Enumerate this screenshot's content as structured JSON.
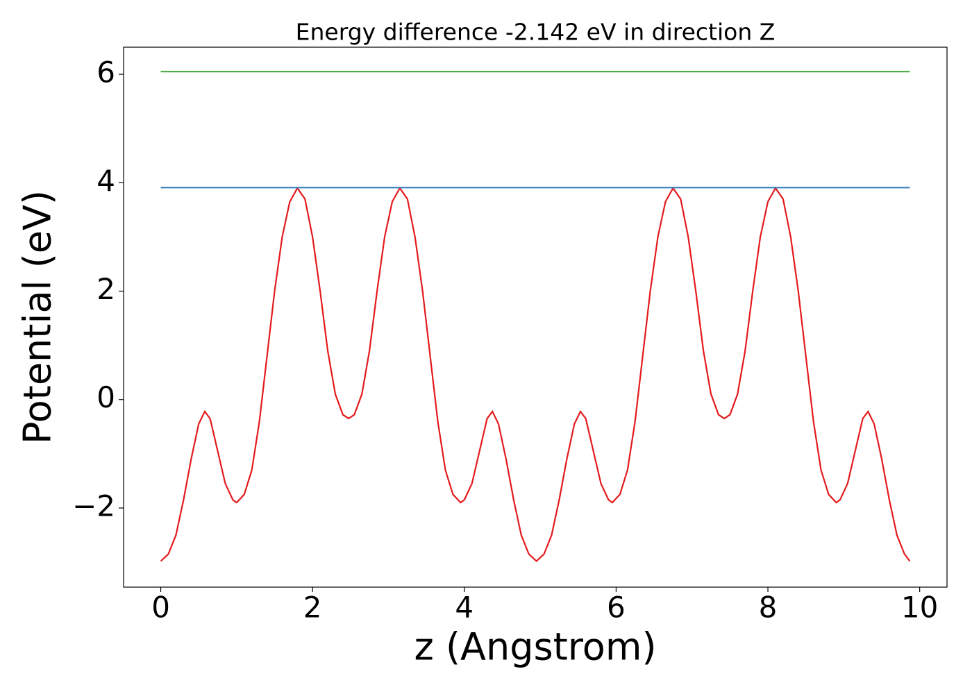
{
  "chart_data": {
    "type": "line",
    "title": "Energy difference -2.142 eV in direction Z",
    "xlabel": "z (Angstrom)",
    "ylabel": "Potential (eV)",
    "xlim": [
      -0.49,
      10.36
    ],
    "ylim": [
      -3.46,
      6.5
    ],
    "xticks": [
      0,
      2,
      4,
      6,
      8,
      10
    ],
    "yticks": [
      {
        "value": -2,
        "label": "−2"
      },
      0,
      2,
      4,
      6
    ],
    "grid": false,
    "series": [
      {
        "color": "#e41a1c",
        "x": [
          0,
          0.1,
          0.2,
          0.3,
          0.4,
          0.5,
          0.58,
          0.65,
          0.75,
          0.85,
          0.95,
          1.0,
          1.1,
          1.2,
          1.3,
          1.4,
          1.5,
          1.6,
          1.7,
          1.8,
          1.9,
          2.0,
          2.1,
          2.2,
          2.3,
          2.4,
          2.475,
          2.55,
          2.65,
          2.75,
          2.85,
          2.95,
          3.05,
          3.15,
          3.25,
          3.35,
          3.45,
          3.55,
          3.65,
          3.75,
          3.85,
          3.95,
          4.0,
          4.1,
          4.2,
          4.3,
          4.37,
          4.45,
          4.55,
          4.65,
          4.75,
          4.85,
          4.95,
          5.05,
          5.15,
          5.25,
          5.35,
          5.45,
          5.53,
          5.6,
          5.7,
          5.8,
          5.9,
          5.95,
          6.05,
          6.15,
          6.25,
          6.35,
          6.45,
          6.55,
          6.65,
          6.75,
          6.85,
          6.95,
          7.05,
          7.15,
          7.25,
          7.35,
          7.425,
          7.5,
          7.6,
          7.7,
          7.8,
          7.9,
          8.0,
          8.1,
          8.2,
          8.3,
          8.4,
          8.5,
          8.6,
          8.7,
          8.8,
          8.9,
          8.95,
          9.05,
          9.15,
          9.25,
          9.32,
          9.4,
          9.5,
          9.6,
          9.7,
          9.8,
          9.87
        ],
        "values": [
          -2.98,
          -2.85,
          -2.5,
          -1.85,
          -1.1,
          -0.45,
          -0.22,
          -0.35,
          -0.95,
          -1.55,
          -1.85,
          -1.9,
          -1.75,
          -1.3,
          -0.4,
          0.8,
          2.0,
          3.0,
          3.65,
          3.9,
          3.7,
          3.0,
          2.0,
          0.9,
          0.1,
          -0.28,
          -0.35,
          -0.28,
          0.1,
          0.9,
          2.0,
          3.0,
          3.65,
          3.9,
          3.7,
          3.0,
          2.0,
          0.8,
          -0.4,
          -1.3,
          -1.75,
          -1.9,
          -1.85,
          -1.55,
          -0.95,
          -0.35,
          -0.22,
          -0.45,
          -1.1,
          -1.85,
          -2.5,
          -2.85,
          -2.98,
          -2.85,
          -2.5,
          -1.85,
          -1.1,
          -0.45,
          -0.22,
          -0.35,
          -0.95,
          -1.55,
          -1.85,
          -1.9,
          -1.75,
          -1.3,
          -0.4,
          0.8,
          2.0,
          3.0,
          3.65,
          3.9,
          3.7,
          3.0,
          2.0,
          0.9,
          0.1,
          -0.28,
          -0.35,
          -0.28,
          0.1,
          0.9,
          2.0,
          3.0,
          3.65,
          3.9,
          3.7,
          3.0,
          2.0,
          0.8,
          -0.4,
          -1.3,
          -1.75,
          -1.9,
          -1.85,
          -1.55,
          -0.95,
          -0.35,
          -0.22,
          -0.45,
          -1.1,
          -1.85,
          -2.5,
          -2.85,
          -2.98
        ]
      },
      {
        "color": "#377eb8",
        "x": [
          0,
          9.87
        ],
        "values": [
          3.91,
          3.91
        ]
      },
      {
        "color": "#4daf4a",
        "x": [
          0,
          9.87
        ],
        "values": [
          6.05,
          6.05
        ]
      }
    ]
  }
}
